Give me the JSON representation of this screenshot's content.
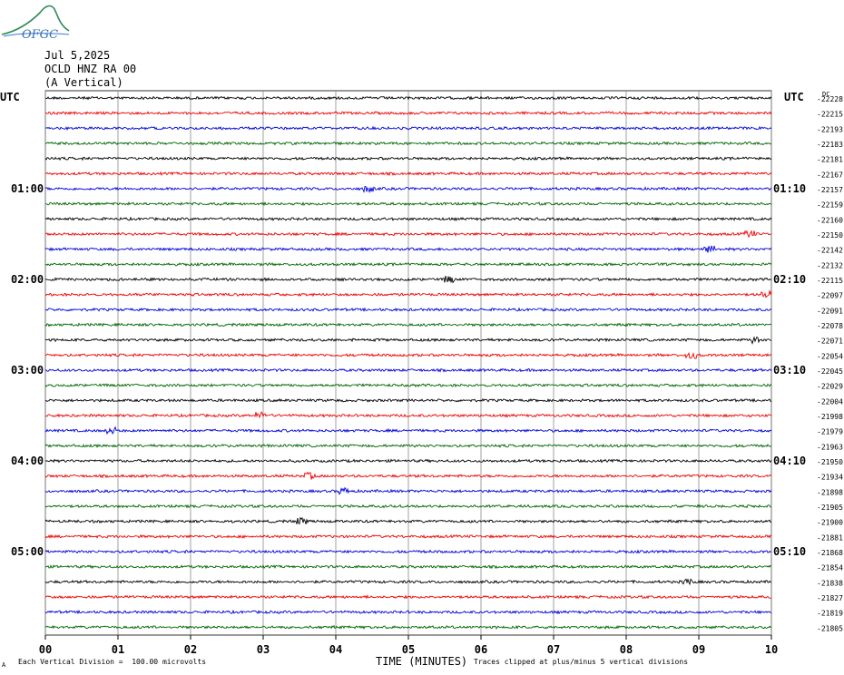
{
  "header": {
    "date": "Jul 5,2025",
    "station": "OCLD HNZ RA 00",
    "component": "(A Vertical)",
    "logo_text": "OFGC"
  },
  "utc_left": "UTC",
  "utc_right": "UTC",
  "dc_label": "DC",
  "xlabel": "TIME (MINUTES)",
  "footer_left": "Each Vertical Division =  100.00 microvolts",
  "footer_right": "Traces clipped at plus/minus 5 vertical divisions",
  "footer_mark": "A",
  "chart_data": {
    "type": "line",
    "x_ticks": [
      "00",
      "01",
      "02",
      "03",
      "04",
      "05",
      "06",
      "07",
      "08",
      "09",
      "10"
    ],
    "xlim": [
      0,
      10
    ],
    "trace_colors": [
      "#000000",
      "#ee0000",
      "#0000dd",
      "#006600"
    ],
    "left_hour_labels": [
      {
        "label": "01:00",
        "row": 6
      },
      {
        "label": "02:00",
        "row": 12
      },
      {
        "label": "03:00",
        "row": 18
      },
      {
        "label": "04:00",
        "row": 24
      },
      {
        "label": "05:00",
        "row": 30
      }
    ],
    "right_hour_labels": [
      {
        "label": "01:10",
        "row": 6
      },
      {
        "label": "02:10",
        "row": 12
      },
      {
        "label": "03:10",
        "row": 18
      },
      {
        "label": "04:10",
        "row": 24
      },
      {
        "label": "05:10",
        "row": 30
      }
    ],
    "dc_offsets": [
      "-22228",
      "-22215",
      "-22193",
      "-22183",
      "-22181",
      "-22167",
      "-22157",
      "-22159",
      "-22160",
      "-22150",
      "-22142",
      "-22132",
      "-22115",
      "-22097",
      "-22091",
      "-22078",
      "-22071",
      "-22054",
      "-22045",
      "-22029",
      "-22004",
      "-21998",
      "-21979",
      "-21963",
      "-21950",
      "-21934",
      "-21898",
      "-21905",
      "-21900",
      "-21881",
      "-21868",
      "-21854",
      "-21838",
      "-21827",
      "-21819",
      "-21805"
    ]
  }
}
